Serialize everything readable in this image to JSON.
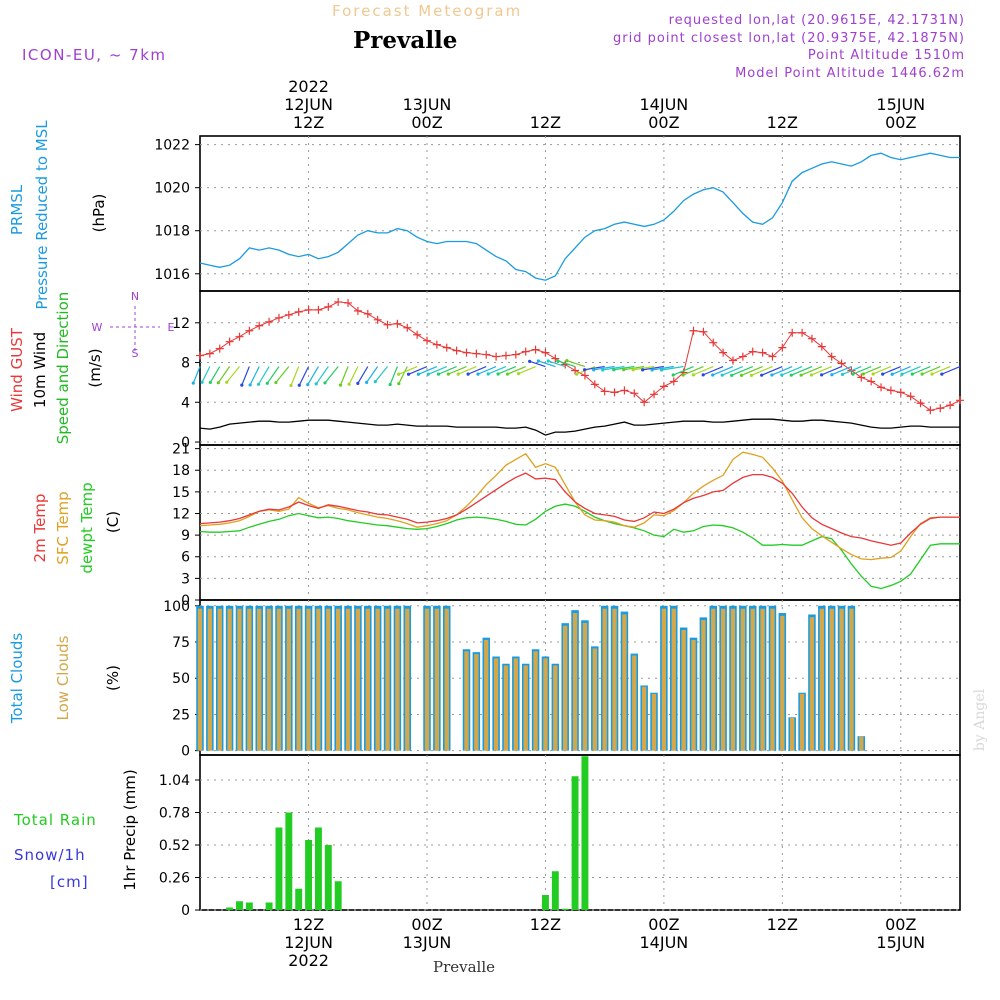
{
  "header": {
    "forecast_title": "Forecast Meteogram",
    "location": "Prevalle",
    "model": "ICON-EU,  ~ 7km",
    "requested": "requested lon,lat (20.9615E, 42.1731N)",
    "grid_point": "grid point closest lon,lat (20.9375E, 42.1875N)",
    "point_altitude": "Point Altitude 1510m",
    "model_altitude": "Model Point Altitude 1446.62m"
  },
  "top_axis": {
    "year": "2022",
    "ticks": [
      {
        "line1": "12JUN",
        "line2": "12Z",
        "hour": 12
      },
      {
        "line1": "13JUN",
        "line2": "00Z",
        "hour": 24
      },
      {
        "line1": "",
        "line2": "12Z",
        "hour": 36
      },
      {
        "line1": "14JUN",
        "line2": "00Z",
        "hour": 48
      },
      {
        "line1": "",
        "line2": "12Z",
        "hour": 60
      },
      {
        "line1": "15JUN",
        "line2": "00Z",
        "hour": 72
      }
    ]
  },
  "bottom_axis": {
    "year": "2022",
    "ticks": [
      {
        "line1": "12Z",
        "line2": "12JUN",
        "hour": 12
      },
      {
        "line1": "00Z",
        "line2": "13JUN",
        "hour": 24
      },
      {
        "line1": "12Z",
        "line2": "",
        "hour": 36
      },
      {
        "line1": "00Z",
        "line2": "14JUN",
        "hour": 48
      },
      {
        "line1": "12Z",
        "line2": "",
        "hour": 60
      },
      {
        "line1": "00Z",
        "line2": "15JUN",
        "hour": 72
      }
    ],
    "location": "Prevalle"
  },
  "watermark": "by Angel",
  "colors": {
    "pressure": "#1a9be0",
    "gust": "#e83838",
    "wind": "#000000",
    "wind_dir": "#22bb22",
    "temp2m": "#e83838",
    "sfc_temp": "#e0a020",
    "dewpoint": "#22cc22",
    "total_clouds": "#1a9be0",
    "low_clouds": "#d4a84a",
    "rain": "#22cc22",
    "snow": "#3838e0",
    "header_title": "#f0c890",
    "header_meta": "#a040d0"
  },
  "chart_data": [
    {
      "type": "line",
      "panel": "pressure",
      "ylabel_lines": [
        "PRMSL",
        "Pressure Reduced to MSL",
        "(hPa)"
      ],
      "yticks": [
        1016,
        1018,
        1020,
        1022
      ],
      "ylim": [
        1015.2,
        1022.4
      ],
      "xlim": [
        1,
        78
      ],
      "grid": true,
      "series": [
        {
          "name": "PRMSL",
          "x": [
            1,
            2,
            3,
            4,
            5,
            6,
            7,
            8,
            9,
            10,
            11,
            12,
            13,
            14,
            15,
            16,
            17,
            18,
            19,
            20,
            21,
            22,
            23,
            24,
            25,
            26,
            27,
            28,
            29,
            30,
            31,
            32,
            33,
            34,
            35,
            36,
            37,
            38,
            39,
            40,
            41,
            42,
            43,
            44,
            45,
            46,
            47,
            48,
            49,
            50,
            51,
            52,
            53,
            54,
            55,
            56,
            57,
            58,
            59,
            60,
            61,
            62,
            63,
            64,
            65,
            66,
            67,
            68,
            69,
            70,
            71,
            72,
            73,
            74,
            75,
            76,
            77,
            78
          ],
          "values": [
            1016.5,
            1016.4,
            1016.3,
            1016.4,
            1016.7,
            1017.2,
            1017.1,
            1017.2,
            1017.1,
            1016.9,
            1016.8,
            1016.9,
            1016.7,
            1016.8,
            1017.0,
            1017.4,
            1017.8,
            1018.0,
            1017.9,
            1017.9,
            1018.1,
            1018.0,
            1017.7,
            1017.5,
            1017.4,
            1017.5,
            1017.5,
            1017.5,
            1017.4,
            1017.1,
            1016.8,
            1016.6,
            1016.2,
            1016.1,
            1015.8,
            1015.7,
            1015.9,
            1016.7,
            1017.2,
            1017.7,
            1018.0,
            1018.1,
            1018.3,
            1018.4,
            1018.3,
            1018.2,
            1018.3,
            1018.5,
            1018.9,
            1019.4,
            1019.7,
            1019.9,
            1020.0,
            1019.8,
            1019.3,
            1018.8,
            1018.4,
            1018.3,
            1018.6,
            1019.3,
            1020.3,
            1020.7,
            1020.9,
            1021.1,
            1021.2,
            1021.1,
            1021.0,
            1021.2,
            1021.5,
            1021.6,
            1021.4,
            1021.3,
            1021.4,
            1021.5,
            1021.6,
            1021.5,
            1021.4,
            1021.4
          ]
        }
      ]
    },
    {
      "type": "line",
      "panel": "wind",
      "ylabel_lines": [
        "Wind GUST",
        "10m Wind",
        "Speed and Direction",
        "(m/s)"
      ],
      "compass": {
        "n": "N",
        "s": "S",
        "w": "W",
        "e": "E"
      },
      "yticks": [
        0,
        4,
        8,
        12
      ],
      "ylim": [
        -0.3,
        15.2
      ],
      "xlim": [
        1,
        78
      ],
      "grid": true,
      "series": [
        {
          "name": "Wind GUST",
          "values": [
            8.7,
            8.9,
            9.4,
            10.1,
            10.6,
            11.2,
            11.7,
            12.1,
            12.5,
            12.8,
            13.1,
            13.3,
            13.3,
            13.6,
            14.1,
            14.0,
            13.2,
            12.9,
            12.3,
            11.8,
            11.9,
            11.5,
            10.8,
            10.2,
            9.8,
            9.5,
            9.2,
            9.0,
            8.9,
            8.8,
            8.6,
            8.7,
            8.8,
            9.1,
            9.3,
            9.0,
            8.4,
            7.8,
            7.2,
            6.7,
            5.8,
            5.1,
            5.0,
            5.2,
            4.9,
            4.0,
            4.8,
            5.6,
            6.1,
            7.0,
            11.2,
            11.1,
            10.0,
            9.0,
            8.2,
            8.6,
            9.1,
            9.0,
            8.6,
            9.5,
            11.0,
            11.0,
            10.4,
            9.6,
            8.6,
            7.9,
            7.2,
            6.5,
            6.1,
            5.5,
            5.2,
            5.0,
            4.6,
            3.9,
            3.2,
            3.4,
            3.7,
            4.2
          ]
        },
        {
          "name": "10m Wind",
          "values": [
            1.4,
            1.3,
            1.5,
            1.8,
            1.9,
            2.0,
            2.1,
            2.1,
            2.0,
            2.0,
            2.1,
            2.2,
            2.2,
            2.2,
            2.1,
            2.0,
            1.9,
            1.8,
            1.7,
            1.7,
            1.8,
            1.7,
            1.6,
            1.6,
            1.6,
            1.6,
            1.5,
            1.5,
            1.5,
            1.5,
            1.5,
            1.4,
            1.4,
            1.5,
            1.2,
            0.7,
            1.0,
            1.0,
            1.1,
            1.3,
            1.5,
            1.6,
            1.8,
            2.0,
            1.7,
            1.7,
            1.8,
            1.9,
            2.0,
            2.1,
            2.1,
            2.1,
            2.0,
            2.0,
            2.1,
            2.2,
            2.3,
            2.3,
            2.3,
            2.2,
            2.1,
            2.1,
            2.2,
            2.2,
            2.1,
            2.0,
            1.9,
            1.7,
            1.5,
            1.4,
            1.4,
            1.5,
            1.6,
            1.6,
            1.5,
            1.5,
            1.5,
            1.5
          ]
        }
      ]
    },
    {
      "type": "line",
      "panel": "temperature",
      "ylabel_lines": [
        "2m Temp",
        "SFC Temp",
        "dewpt Temp",
        "(C)"
      ],
      "yticks": [
        0,
        3,
        6,
        9,
        12,
        15,
        18,
        21
      ],
      "ylim": [
        0,
        21.5
      ],
      "xlim": [
        1,
        78
      ],
      "grid": true,
      "series": [
        {
          "name": "2m Temp",
          "values": [
            10.6,
            10.7,
            10.8,
            11.0,
            11.3,
            11.8,
            12.3,
            12.6,
            12.5,
            12.9,
            13.6,
            13.1,
            12.7,
            13.2,
            13.0,
            12.7,
            12.4,
            12.2,
            11.9,
            11.8,
            11.5,
            11.2,
            10.7,
            10.8,
            11.0,
            11.3,
            11.8,
            12.6,
            13.5,
            14.4,
            15.3,
            16.2,
            17.0,
            17.6,
            16.8,
            16.9,
            16.7,
            15.0,
            13.6,
            12.7,
            12.0,
            11.8,
            11.6,
            11.1,
            10.9,
            11.4,
            12.2,
            12.0,
            12.6,
            13.5,
            14.1,
            14.5,
            15.0,
            15.2,
            16.2,
            17.0,
            17.4,
            17.4,
            17.0,
            16.2,
            14.8,
            12.9,
            11.4,
            10.5,
            9.9,
            9.3,
            8.8,
            8.6,
            8.2,
            7.9,
            7.6,
            7.9,
            9.3,
            10.5,
            11.3,
            11.5,
            11.5,
            11.5
          ]
        },
        {
          "name": "SFC Temp",
          "values": [
            10.3,
            10.4,
            10.5,
            10.7,
            11.0,
            11.6,
            12.3,
            12.5,
            12.3,
            12.6,
            14.2,
            13.4,
            12.8,
            13.1,
            12.7,
            12.5,
            12.1,
            11.8,
            11.5,
            11.3,
            11.0,
            10.6,
            10.1,
            10.3,
            10.6,
            11.0,
            11.8,
            13.0,
            14.4,
            16.0,
            17.3,
            18.7,
            19.5,
            20.3,
            18.4,
            18.9,
            18.4,
            16.0,
            13.6,
            11.8,
            11.1,
            11.0,
            10.8,
            10.3,
            10.1,
            10.7,
            11.8,
            11.7,
            12.4,
            13.5,
            14.8,
            15.8,
            16.6,
            17.3,
            19.5,
            20.5,
            20.2,
            19.8,
            18.3,
            16.5,
            13.9,
            11.4,
            9.9,
            8.9,
            8.0,
            7.1,
            6.3,
            5.7,
            5.6,
            5.8,
            5.9,
            6.8,
            8.8,
            10.6,
            11.4,
            11.5,
            11.5,
            11.5
          ]
        },
        {
          "name": "dewpt Temp",
          "values": [
            9.5,
            9.4,
            9.4,
            9.5,
            9.6,
            10.1,
            10.5,
            10.9,
            11.2,
            11.7,
            12.0,
            11.7,
            11.4,
            11.5,
            11.3,
            11.0,
            10.8,
            10.6,
            10.4,
            10.3,
            10.1,
            9.9,
            9.8,
            9.9,
            10.2,
            10.6,
            11.1,
            11.4,
            11.5,
            11.4,
            11.2,
            10.9,
            10.5,
            10.4,
            11.2,
            12.3,
            13.0,
            13.3,
            13.0,
            12.3,
            11.5,
            11.0,
            10.6,
            10.3,
            10.0,
            9.6,
            9.0,
            8.8,
            9.8,
            9.4,
            9.6,
            10.2,
            10.4,
            10.3,
            10.0,
            9.4,
            8.6,
            7.6,
            7.6,
            7.7,
            7.6,
            7.6,
            8.2,
            8.8,
            8.5,
            6.9,
            5.0,
            3.3,
            1.9,
            1.6,
            2.0,
            2.6,
            3.6,
            5.6,
            7.6,
            7.8,
            7.8,
            7.8
          ]
        }
      ]
    },
    {
      "type": "bar",
      "panel": "clouds",
      "ylabel_lines": [
        "Total Clouds",
        "Low Clouds",
        "(%)"
      ],
      "yticks": [
        0,
        25,
        50,
        75,
        100
      ],
      "ylim": [
        -3,
        104
      ],
      "xlim": [
        1,
        78
      ],
      "grid": true,
      "series": [
        {
          "name": "Total Clouds",
          "values": [
            100,
            100,
            100,
            100,
            100,
            100,
            100,
            100,
            100,
            100,
            100,
            100,
            100,
            100,
            100,
            100,
            100,
            100,
            100,
            100,
            100,
            100,
            0,
            100,
            100,
            100,
            0,
            70,
            68,
            78,
            65,
            60,
            65,
            60,
            70,
            65,
            60,
            88,
            97,
            90,
            72,
            100,
            100,
            96,
            67,
            45,
            40,
            100,
            100,
            85,
            78,
            92,
            100,
            100,
            100,
            100,
            100,
            100,
            100,
            95,
            23,
            40,
            94,
            100,
            100,
            100,
            100,
            10,
            0,
            0,
            0,
            0,
            0,
            0,
            0,
            0,
            0,
            0
          ]
        },
        {
          "name": "Low Clouds",
          "values": [
            100,
            100,
            100,
            100,
            100,
            100,
            100,
            100,
            100,
            100,
            100,
            100,
            100,
            100,
            100,
            100,
            100,
            100,
            100,
            100,
            100,
            100,
            0,
            100,
            100,
            100,
            0,
            70,
            68,
            78,
            65,
            60,
            65,
            60,
            70,
            65,
            60,
            88,
            97,
            90,
            72,
            100,
            100,
            96,
            67,
            45,
            40,
            100,
            100,
            85,
            78,
            92,
            100,
            100,
            100,
            100,
            100,
            100,
            100,
            95,
            23,
            40,
            94,
            100,
            100,
            100,
            100,
            10,
            0,
            0,
            0,
            0,
            0,
            0,
            0,
            0,
            0,
            0
          ]
        }
      ]
    },
    {
      "type": "bar",
      "panel": "precip",
      "ylabel_lines": [
        "1hr Precip (mm)"
      ],
      "legend_lines": [
        "Total  Rain",
        "Snow/1h",
        "[cm]"
      ],
      "yticks": [
        0,
        0.26,
        0.52,
        0.78,
        1.04
      ],
      "ylim": [
        0,
        1.24
      ],
      "xlim": [
        1,
        78
      ],
      "grid": true,
      "series": [
        {
          "name": "Total Rain",
          "values": [
            0,
            0,
            0,
            0.02,
            0.07,
            0.06,
            0,
            0.06,
            0.66,
            0.78,
            0.17,
            0.56,
            0.66,
            0.52,
            0.23,
            0,
            0,
            0,
            0,
            0,
            0,
            0,
            0,
            0,
            0,
            0,
            0,
            0,
            0,
            0,
            0,
            0,
            0,
            0,
            0,
            0.12,
            0.31,
            0.01,
            1.07,
            1.23,
            0,
            0,
            0,
            0,
            0,
            0,
            0,
            0,
            0,
            0,
            0,
            0,
            0,
            0,
            0,
            0,
            0,
            0,
            0,
            0,
            0,
            0,
            0,
            0,
            0,
            0,
            0,
            0,
            0,
            0,
            0,
            0,
            0,
            0,
            0,
            0,
            0,
            0
          ]
        }
      ]
    }
  ]
}
